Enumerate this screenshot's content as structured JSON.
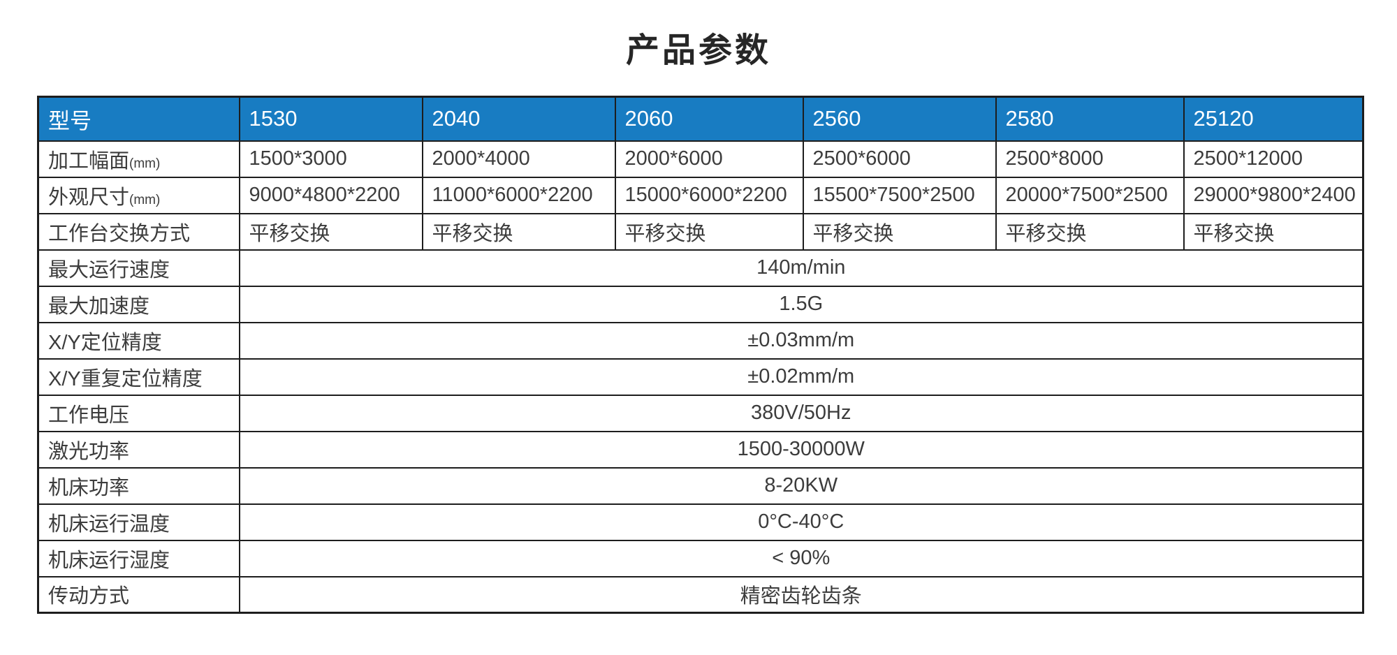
{
  "page": {
    "title": "产品参数"
  },
  "colors": {
    "header_bg": "#187cc2",
    "header_text": "#ffffff",
    "border": "#1d1d1d",
    "body_text": "#3c3c3c"
  },
  "table": {
    "header": {
      "label": "型号",
      "models": [
        "1530",
        "2040",
        "2060",
        "2560",
        "2580",
        "25120"
      ]
    },
    "column_rows": [
      {
        "label": "加工幅面",
        "unit": "(mm)",
        "values": [
          "1500*3000",
          "2000*4000",
          "2000*6000",
          "2500*6000",
          "2500*8000",
          "2500*12000"
        ]
      },
      {
        "label": "外观尺寸",
        "unit": "(mm)",
        "values": [
          "9000*4800*2200",
          "11000*6000*2200",
          "15000*6000*2200",
          "15500*7500*2500",
          "20000*7500*2500",
          "29000*9800*2400"
        ]
      },
      {
        "label": "工作台交换方式",
        "unit": "",
        "values": [
          "平移交换",
          "平移交换",
          "平移交换",
          "平移交换",
          "平移交换",
          "平移交换"
        ]
      }
    ],
    "span_rows": [
      {
        "label": "最大运行速度",
        "value": "140m/min"
      },
      {
        "label": "最大加速度",
        "value": "1.5G"
      },
      {
        "label": "X/Y定位精度",
        "value": "±0.03mm/m"
      },
      {
        "label": "X/Y重复定位精度",
        "value": "±0.02mm/m"
      },
      {
        "label": "工作电压",
        "value": "380V/50Hz"
      },
      {
        "label": "激光功率",
        "value": "1500-30000W"
      },
      {
        "label": "机床功率",
        "value": "8-20KW"
      },
      {
        "label": "机床运行温度",
        "value": "0°C-40°C"
      },
      {
        "label": "机床运行湿度",
        "value": "< 90%"
      },
      {
        "label": "传动方式",
        "value": "精密齿轮齿条"
      }
    ]
  }
}
